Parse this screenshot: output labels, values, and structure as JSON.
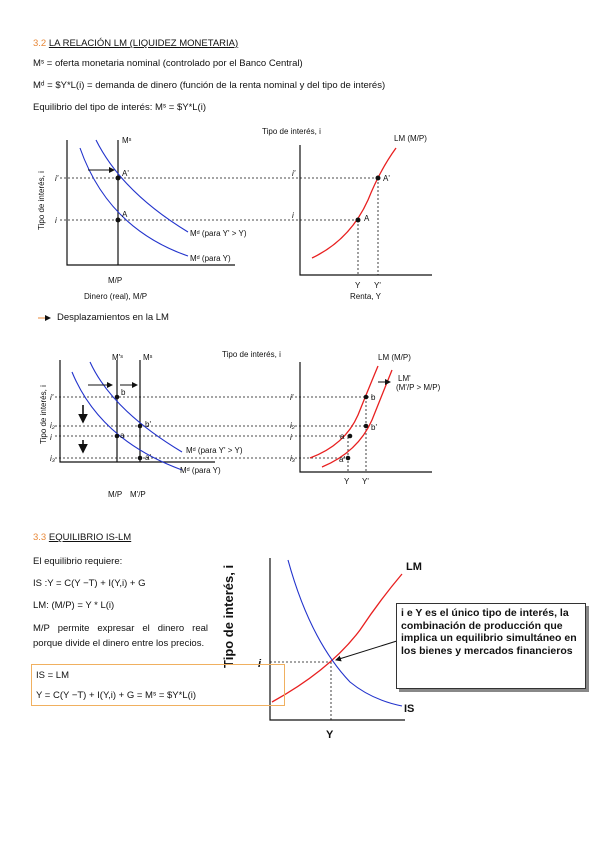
{
  "section_lm": {
    "number": "3.2",
    "title": "LA RELACIÓN LM (LIQUIDEZ MONETARIA)",
    "lines": [
      "Mˢ = oferta monetaria nominal (controlado por el Banco Central)",
      "Mᵈ = $Y*L(i) = demanda de dinero (función de la renta nominal y del tipo de interés)",
      "Equilibrio del tipo de interés: Mˢ = $Y*L(i)"
    ]
  },
  "figure_lm": {
    "left": {
      "supply": "Mˢ",
      "y_axis": "Tipo de interés, i",
      "i_high": "i'",
      "i_low": "i",
      "point_high": "A'",
      "point_low": "A",
      "demand_high": "Mᵈ (para Y' > Y)",
      "demand_low": "Mᵈ (para Y)",
      "x_tick": "M/P",
      "x_axis": "Dinero (real), M/P"
    },
    "right": {
      "y_axis": "Tipo de interés, i",
      "curve": "LM (M/P)",
      "i_high": "i'",
      "i_low": "i",
      "point_high": "A'",
      "point_low": "A",
      "y_low": "Y",
      "y_high": "Y'",
      "x_axis": "Renta, Y"
    }
  },
  "bullet": "Desplazamientos en la LM",
  "figure_shift": {
    "left": {
      "supply_new": "M'ˢ",
      "supply": "Mˢ",
      "y_axis": "Tipo de interés, i",
      "i_labels": [
        "i'",
        "i₂",
        "i",
        "i₃"
      ],
      "points": [
        "b",
        "b'",
        "a",
        "a'"
      ],
      "demand_high": "Mᵈ (para Y' > Y)",
      "demand_low": "Mᵈ (para Y)",
      "x_ticks": [
        "M/P",
        "M'/P"
      ]
    },
    "right": {
      "y_axis": "Tipo de interés, i",
      "curve": "LM (M/P)",
      "curve_new": "LM'",
      "curve_new_note": "(M'/P > M/P)",
      "i_labels": [
        "i'",
        "i₂",
        "i",
        "i₃"
      ],
      "points": [
        "b",
        "b'",
        "a",
        "a'"
      ],
      "x_ticks": [
        "Y",
        "Y'"
      ]
    }
  },
  "section_islm": {
    "number": "3.3",
    "title": "EQUILIBRIO IS-LM",
    "lines": [
      "El equilibrio requiere:",
      "IS :Y = C(Y −T) + I(Y,i) + G",
      "LM: (M/P) = Y * L(i)",
      "M/P permite expresar el dinero real porque divide el dinero entre los precios."
    ],
    "box": [
      "IS = LM",
      "Y = C(Y −T) + I(Y,i) + G = Mˢ = $Y*L(i)"
    ]
  },
  "figure_islm": {
    "y_axis": "Tipo de interés, i",
    "lm": "LM",
    "is": "IS",
    "i": "i",
    "y": "Y",
    "callout": "i e Y es el único tipo de interés, la combinación de producción que implica un equilibrio simultáneo en los bienes y mercados financieros"
  }
}
